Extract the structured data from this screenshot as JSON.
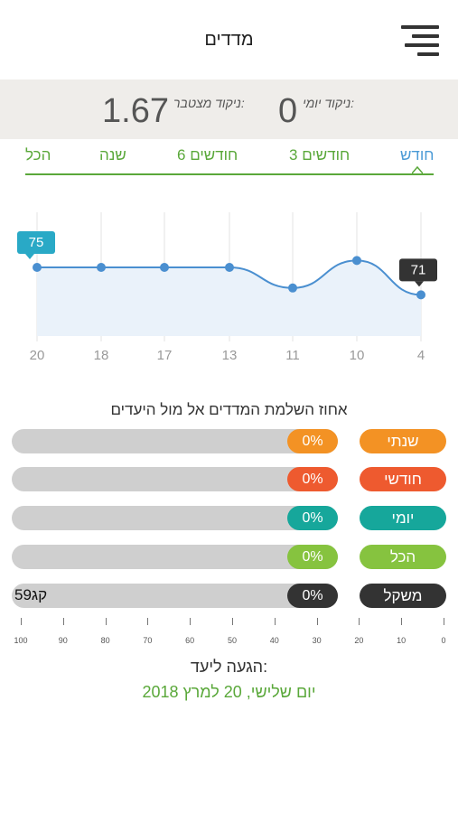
{
  "header": {
    "title": "מדדים",
    "menu_icon": "hamburger-menu-icon"
  },
  "scores": {
    "cumulative_label": "ניקוד מצטבר:",
    "cumulative_value": "1.67",
    "daily_label": "ניקוד יומי:",
    "daily_value": "0"
  },
  "tabs": [
    {
      "label": "חודש",
      "active": true
    },
    {
      "label": "3 חודשים",
      "active": false
    },
    {
      "label": "6 חודשים",
      "active": false
    },
    {
      "label": "שנה",
      "active": false
    },
    {
      "label": "הכל",
      "active": false
    }
  ],
  "chart_data": {
    "type": "line",
    "x": [
      "20",
      "18",
      "17",
      "13",
      "11",
      "10",
      "4"
    ],
    "values": [
      75,
      75,
      75,
      75,
      72,
      76,
      71
    ],
    "callouts": [
      {
        "index": 0,
        "label": "75"
      },
      {
        "index": 6,
        "label": "71"
      }
    ],
    "grid": true,
    "colors": {
      "line": "#4a8fd0",
      "area": "#eaf2fa",
      "first_callout": "#29a9c6",
      "last_callout": "#333333"
    }
  },
  "progress": {
    "title": "אחוז השלמת המדדים אל מול היעדים",
    "rows": [
      {
        "label": "שנתי",
        "percent_text": "0%",
        "value": 0,
        "color": "#f39224"
      },
      {
        "label": "חודשי",
        "percent_text": "0%",
        "value": 0,
        "color": "#ee5a2f"
      },
      {
        "label": "יומי",
        "percent_text": "0%",
        "value": 0,
        "color": "#16a79b"
      },
      {
        "label": "הכל",
        "percent_text": "0%",
        "value": 0,
        "color": "#86c33f"
      },
      {
        "label": "משקל",
        "percent_text": "0%",
        "value": 0,
        "color": "#333333",
        "extra_text": "59קג"
      }
    ],
    "axis_labels": [
      "0",
      "10",
      "20",
      "30",
      "40",
      "50",
      "60",
      "70",
      "80",
      "90",
      "100"
    ]
  },
  "target": {
    "label": "הגעה ליעד:",
    "date": "יום שלישי, 20 למרץ 2018"
  }
}
